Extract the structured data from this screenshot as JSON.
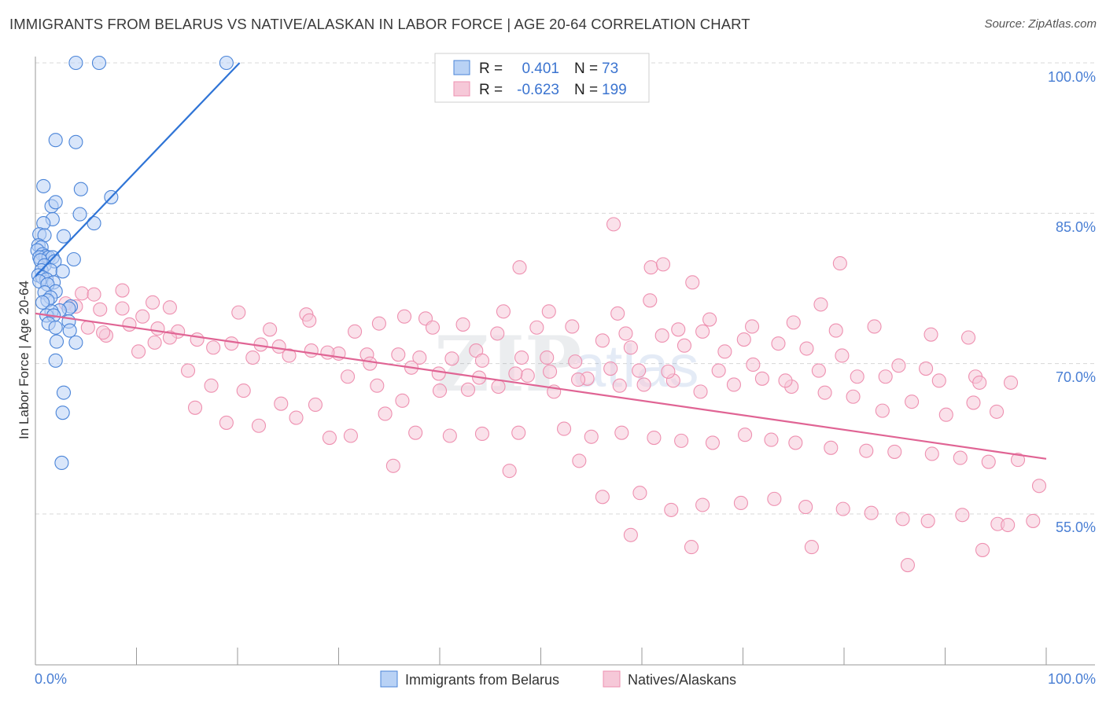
{
  "header": {
    "title": "IMMIGRANTS FROM BELARUS VS NATIVE/ALASKAN IN LABOR FORCE | AGE 20-64 CORRELATION CHART",
    "source": "Source: ZipAtlas.com"
  },
  "colors": {
    "blue_fill": "#b9d2f5",
    "blue_stroke": "#4a84d8",
    "blue_line": "#2f74d6",
    "pink_fill": "#f6c8d8",
    "pink_stroke": "#ee90b0",
    "pink_line": "#e06494",
    "tick_text": "#4a7fd4",
    "grid": "#d8d8d8"
  },
  "chart_data": {
    "type": "scatter",
    "title": "IMMIGRANTS FROM BELARUS VS NATIVE/ALASKAN IN LABOR FORCE | AGE 20-64 CORRELATION CHART",
    "xlabel": "",
    "ylabel": "In Labor Force | Age 20-64",
    "xlim": [
      0,
      100
    ],
    "ylim": [
      40.5,
      101.5
    ],
    "x_tick_labels": [
      "0.0%",
      "100.0%"
    ],
    "y_ticks": [
      55,
      70,
      85,
      100
    ],
    "y_tick_labels": [
      "55.0%",
      "70.0%",
      "85.0%",
      "100.0%"
    ],
    "grid": true,
    "watermark": "ZIPatlas",
    "legend": {
      "stats_position": "top-center",
      "entries": [
        {
          "r_label": "R =",
          "r_value": "0.401",
          "n_label": "N =",
          "n_value": "73"
        },
        {
          "r_label": "R =",
          "r_value": "-0.623",
          "n_label": "N =",
          "n_value": "199"
        }
      ],
      "bottom_labels": [
        "Immigrants from Belarus",
        "Natives/Alaskans"
      ]
    },
    "series": [
      {
        "name": "Immigrants from Belarus",
        "trend": {
          "x0": 0.0,
          "y0": 78.7,
          "x1": 20.2,
          "y1": 100.0
        },
        "points": [
          [
            4.0,
            100.0
          ],
          [
            6.3,
            100.0
          ],
          [
            18.9,
            100.0
          ],
          [
            2.0,
            92.3
          ],
          [
            4.0,
            92.1
          ],
          [
            0.8,
            87.7
          ],
          [
            4.5,
            87.4
          ],
          [
            7.5,
            86.6
          ],
          [
            1.6,
            85.7
          ],
          [
            2.0,
            86.1
          ],
          [
            4.4,
            84.9
          ],
          [
            1.7,
            84.4
          ],
          [
            5.8,
            84.0
          ],
          [
            0.8,
            84.0
          ],
          [
            0.4,
            82.9
          ],
          [
            0.9,
            82.8
          ],
          [
            2.8,
            82.7
          ],
          [
            0.3,
            81.8
          ],
          [
            0.6,
            81.6
          ],
          [
            0.2,
            81.3
          ],
          [
            0.7,
            80.9
          ],
          [
            1.0,
            80.7
          ],
          [
            0.4,
            80.6
          ],
          [
            1.3,
            80.6
          ],
          [
            1.7,
            80.6
          ],
          [
            0.5,
            80.3
          ],
          [
            1.9,
            80.2
          ],
          [
            3.8,
            80.4
          ],
          [
            0.9,
            79.8
          ],
          [
            0.6,
            79.3
          ],
          [
            1.5,
            79.3
          ],
          [
            2.7,
            79.2
          ],
          [
            0.3,
            78.8
          ],
          [
            0.7,
            78.6
          ],
          [
            1.1,
            78.4
          ],
          [
            0.4,
            78.2
          ],
          [
            1.8,
            78.1
          ],
          [
            1.2,
            77.9
          ],
          [
            2.0,
            77.2
          ],
          [
            0.9,
            77.1
          ],
          [
            1.5,
            76.6
          ],
          [
            1.2,
            76.3
          ],
          [
            0.7,
            76.1
          ],
          [
            3.5,
            75.7
          ],
          [
            3.3,
            75.5
          ],
          [
            2.4,
            75.3
          ],
          [
            1.6,
            75.2
          ],
          [
            1.1,
            74.8
          ],
          [
            1.8,
            74.8
          ],
          [
            3.3,
            74.2
          ],
          [
            1.3,
            74.0
          ],
          [
            2.0,
            73.6
          ],
          [
            3.4,
            73.3
          ],
          [
            2.1,
            72.2
          ],
          [
            4.0,
            72.1
          ],
          [
            2.0,
            70.3
          ],
          [
            2.8,
            67.1
          ],
          [
            2.7,
            65.1
          ],
          [
            2.6,
            60.1
          ]
        ]
      },
      {
        "name": "Natives/Alaskans",
        "trend": {
          "x0": 0.0,
          "y0": 75.0,
          "x1": 100.0,
          "y1": 60.5
        },
        "points": [
          [
            57.2,
            83.9
          ],
          [
            60.9,
            79.6
          ],
          [
            79.6,
            80.0
          ],
          [
            47.9,
            79.6
          ],
          [
            62.1,
            79.9
          ],
          [
            65.0,
            78.1
          ],
          [
            77.7,
            75.9
          ],
          [
            60.8,
            76.3
          ],
          [
            57.6,
            75.0
          ],
          [
            50.8,
            75.2
          ],
          [
            46.3,
            75.2
          ],
          [
            36.5,
            74.7
          ],
          [
            38.6,
            74.5
          ],
          [
            34.0,
            74.0
          ],
          [
            26.8,
            74.9
          ],
          [
            20.1,
            75.1
          ],
          [
            13.3,
            75.6
          ],
          [
            11.6,
            76.1
          ],
          [
            8.6,
            75.5
          ],
          [
            6.4,
            75.4
          ],
          [
            4.0,
            75.7
          ],
          [
            3.0,
            76.0
          ],
          [
            4.6,
            77.0
          ],
          [
            5.8,
            76.9
          ],
          [
            8.6,
            77.3
          ],
          [
            10.6,
            74.7
          ],
          [
            9.3,
            73.9
          ],
          [
            12.1,
            73.5
          ],
          [
            14.1,
            73.2
          ],
          [
            5.2,
            73.6
          ],
          [
            7.0,
            72.8
          ],
          [
            13.3,
            72.6
          ],
          [
            16.0,
            72.4
          ],
          [
            19.4,
            72.0
          ],
          [
            22.3,
            71.9
          ],
          [
            24.1,
            71.7
          ],
          [
            27.3,
            71.3
          ],
          [
            30.0,
            71.0
          ],
          [
            32.8,
            70.9
          ],
          [
            35.9,
            70.9
          ],
          [
            38.0,
            70.6
          ],
          [
            41.2,
            70.5
          ],
          [
            43.6,
            71.3
          ],
          [
            44.2,
            70.3
          ],
          [
            48.1,
            70.6
          ],
          [
            50.6,
            70.6
          ],
          [
            53.4,
            70.2
          ],
          [
            56.1,
            72.3
          ],
          [
            58.9,
            71.6
          ],
          [
            62.0,
            72.8
          ],
          [
            64.2,
            71.8
          ],
          [
            66.0,
            73.2
          ],
          [
            68.2,
            71.2
          ],
          [
            70.1,
            72.4
          ],
          [
            73.5,
            72.0
          ],
          [
            76.3,
            71.5
          ],
          [
            79.8,
            70.8
          ],
          [
            84.1,
            68.7
          ],
          [
            88.1,
            69.5
          ],
          [
            93.0,
            68.7
          ],
          [
            96.5,
            68.1
          ],
          [
            10.2,
            71.2
          ],
          [
            15.1,
            69.3
          ],
          [
            17.4,
            67.8
          ],
          [
            20.6,
            67.3
          ],
          [
            24.3,
            66.0
          ],
          [
            27.7,
            65.9
          ],
          [
            30.9,
            68.7
          ],
          [
            33.8,
            67.8
          ],
          [
            36.3,
            66.3
          ],
          [
            40.0,
            67.3
          ],
          [
            42.8,
            67.4
          ],
          [
            45.8,
            67.7
          ],
          [
            48.7,
            68.8
          ],
          [
            51.3,
            67.2
          ],
          [
            54.6,
            68.5
          ],
          [
            57.8,
            67.8
          ],
          [
            60.2,
            67.9
          ],
          [
            63.1,
            68.3
          ],
          [
            65.8,
            67.2
          ],
          [
            69.1,
            67.9
          ],
          [
            71.9,
            68.5
          ],
          [
            74.8,
            67.7
          ],
          [
            78.1,
            67.1
          ],
          [
            80.9,
            66.7
          ],
          [
            83.8,
            65.3
          ],
          [
            86.7,
            66.2
          ],
          [
            90.1,
            64.9
          ],
          [
            92.8,
            66.1
          ],
          [
            95.1,
            65.2
          ],
          [
            15.8,
            65.6
          ],
          [
            18.9,
            64.1
          ],
          [
            22.1,
            63.8
          ],
          [
            25.8,
            64.6
          ],
          [
            29.1,
            62.6
          ],
          [
            31.2,
            62.8
          ],
          [
            34.6,
            65.0
          ],
          [
            37.6,
            63.1
          ],
          [
            41.0,
            62.8
          ],
          [
            44.2,
            63.0
          ],
          [
            47.8,
            63.1
          ],
          [
            52.3,
            63.5
          ],
          [
            55.0,
            62.7
          ],
          [
            58.0,
            63.1
          ],
          [
            61.2,
            62.6
          ],
          [
            63.9,
            62.3
          ],
          [
            67.0,
            62.1
          ],
          [
            70.2,
            62.9
          ],
          [
            72.8,
            62.4
          ],
          [
            75.2,
            62.1
          ],
          [
            78.7,
            61.6
          ],
          [
            82.2,
            61.3
          ],
          [
            85.0,
            61.2
          ],
          [
            88.7,
            61.0
          ],
          [
            91.5,
            60.6
          ],
          [
            94.3,
            60.2
          ],
          [
            97.2,
            60.4
          ],
          [
            6.7,
            73.1
          ],
          [
            11.8,
            72.1
          ],
          [
            17.6,
            71.6
          ],
          [
            21.5,
            70.6
          ],
          [
            25.1,
            70.8
          ],
          [
            28.9,
            71.1
          ],
          [
            33.1,
            70.0
          ],
          [
            37.2,
            69.6
          ],
          [
            39.9,
            69.0
          ],
          [
            43.9,
            68.6
          ],
          [
            47.5,
            69.0
          ],
          [
            50.9,
            69.2
          ],
          [
            53.7,
            68.4
          ],
          [
            56.9,
            69.5
          ],
          [
            59.7,
            69.3
          ],
          [
            62.6,
            69.2
          ],
          [
            67.6,
            69.3
          ],
          [
            71.0,
            69.9
          ],
          [
            74.2,
            68.3
          ],
          [
            77.5,
            69.3
          ],
          [
            81.3,
            68.7
          ],
          [
            85.4,
            69.8
          ],
          [
            89.4,
            68.3
          ],
          [
            93.4,
            68.1
          ],
          [
            23.2,
            73.4
          ],
          [
            27.1,
            74.3
          ],
          [
            31.6,
            73.2
          ],
          [
            39.3,
            73.6
          ],
          [
            42.3,
            73.9
          ],
          [
            45.7,
            73.0
          ],
          [
            49.6,
            73.6
          ],
          [
            53.1,
            73.7
          ],
          [
            58.4,
            73.0
          ],
          [
            63.6,
            73.4
          ],
          [
            66.7,
            74.4
          ],
          [
            70.9,
            73.7
          ],
          [
            75.0,
            74.1
          ],
          [
            79.2,
            73.3
          ],
          [
            83.0,
            73.7
          ],
          [
            88.6,
            72.9
          ],
          [
            92.3,
            72.6
          ],
          [
            35.4,
            59.8
          ],
          [
            46.9,
            59.3
          ],
          [
            53.8,
            60.3
          ],
          [
            56.1,
            56.7
          ],
          [
            59.8,
            57.1
          ],
          [
            62.9,
            55.4
          ],
          [
            66.0,
            55.9
          ],
          [
            69.8,
            56.1
          ],
          [
            73.1,
            56.5
          ],
          [
            76.2,
            55.7
          ],
          [
            79.9,
            55.5
          ],
          [
            82.7,
            55.1
          ],
          [
            85.8,
            54.5
          ],
          [
            88.3,
            54.3
          ],
          [
            91.7,
            54.9
          ],
          [
            95.2,
            54.0
          ],
          [
            98.7,
            54.3
          ],
          [
            58.9,
            52.9
          ],
          [
            64.9,
            51.7
          ],
          [
            76.8,
            51.7
          ],
          [
            86.3,
            49.9
          ],
          [
            93.7,
            51.4
          ],
          [
            96.2,
            53.9
          ],
          [
            99.3,
            57.8
          ]
        ]
      }
    ]
  }
}
